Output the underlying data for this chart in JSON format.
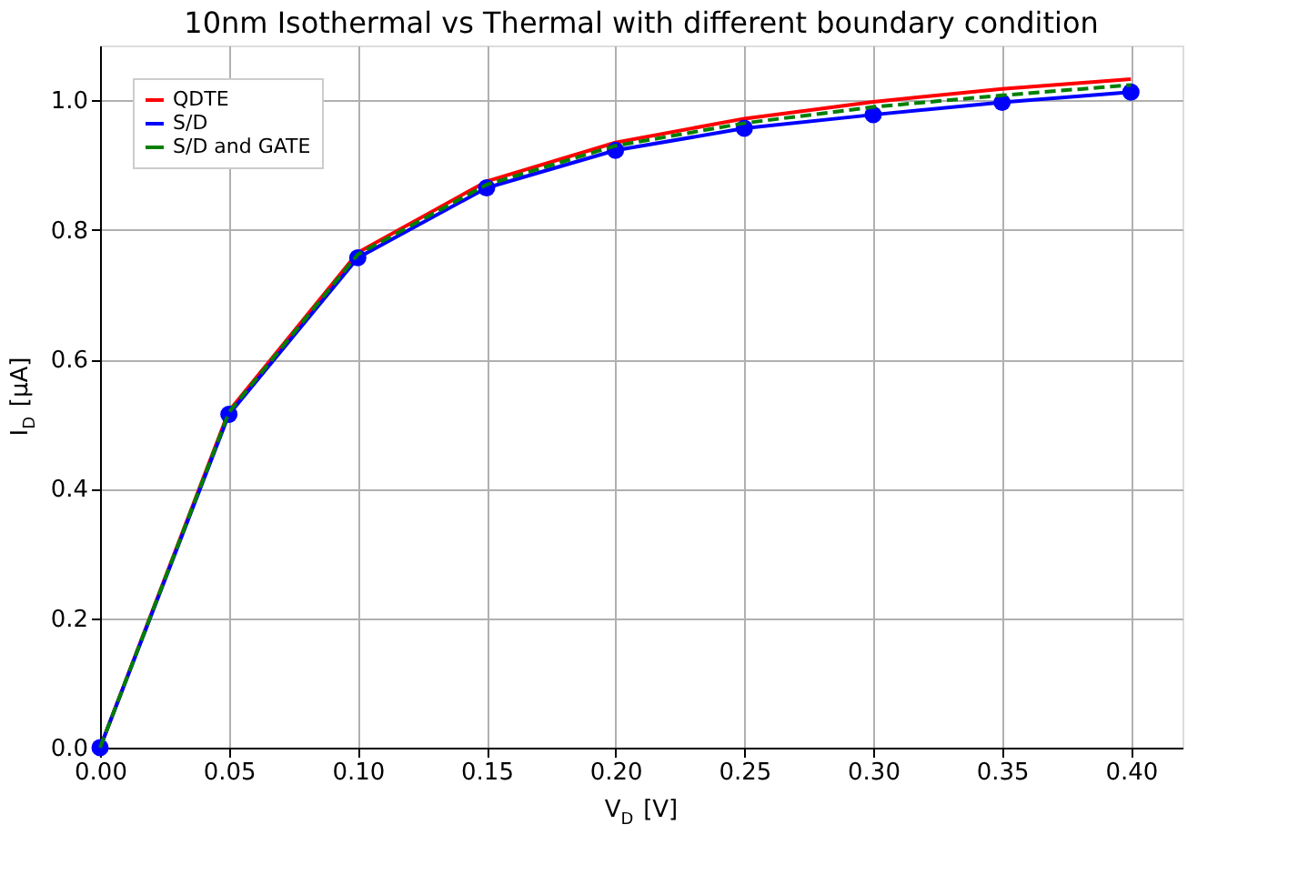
{
  "chart_data": {
    "type": "line",
    "title": "10nm Isothermal vs Thermal with different boundary condition",
    "xlabel": "V$_{D}$ [V]",
    "ylabel": "I$_{D}$ [μA]",
    "x": [
      0.0,
      0.05,
      0.1,
      0.15,
      0.2,
      0.25,
      0.3,
      0.35,
      0.4
    ],
    "series": [
      {
        "name": "QDTE",
        "color": "#ff0000",
        "marker": "none",
        "line_style": "solid",
        "values": [
          0.0,
          0.52,
          0.765,
          0.875,
          0.935,
          0.972,
          0.998,
          1.018,
          1.033
        ]
      },
      {
        "name": "S/D",
        "color": "#0000ff",
        "marker": "circle",
        "line_style": "solid",
        "values": [
          0.0,
          0.515,
          0.757,
          0.865,
          0.923,
          0.957,
          0.978,
          0.997,
          1.013
        ]
      },
      {
        "name": "S/D and GATE",
        "color": "#008000",
        "marker": "none",
        "line_style": "dashed",
        "values": [
          0.0,
          0.518,
          0.762,
          0.87,
          0.93,
          0.965,
          0.99,
          1.008,
          1.024
        ]
      }
    ],
    "xlim": [
      0.0,
      0.42
    ],
    "ylim": [
      0.0,
      1.085
    ],
    "xticks": [
      {
        "value": 0.0,
        "label": "0.00"
      },
      0.05,
      {
        "value": 0.1,
        "label": "0.10"
      },
      0.15,
      {
        "value": 0.2,
        "label": "0.20"
      },
      0.25,
      {
        "value": 0.3,
        "label": "0.30"
      },
      0.35,
      {
        "value": 0.4,
        "label": "0.40"
      }
    ],
    "yticks": [
      {
        "value": 0.0,
        "label": "0.0"
      },
      0.2,
      0.4,
      0.6,
      0.8,
      {
        "value": 1.0,
        "label": "1.0"
      }
    ],
    "grid": true,
    "legend": "top left"
  }
}
